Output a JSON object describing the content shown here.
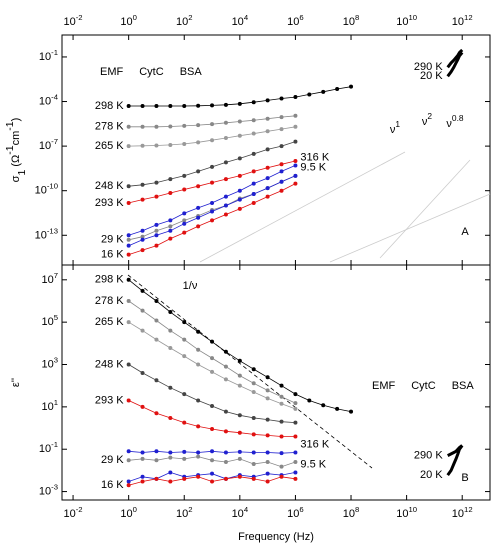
{
  "chart_data": [
    {
      "type": "line",
      "ylabel": "σ_1 (Ω^-1cm^-1)",
      "log_x": true,
      "log_y": true,
      "x_tick_side": "top",
      "xlim": [
        0.004,
        10000000000000.0
      ],
      "xticks": [
        {
          "value": 0.01,
          "label": "10^-2"
        },
        {
          "value": 1,
          "label": "10^0"
        },
        {
          "value": 100,
          "label": "10^2"
        },
        {
          "value": 10000,
          "label": "10^4"
        },
        {
          "value": 1000000,
          "label": "10^6"
        },
        {
          "value": 100000000,
          "label": "10^8"
        },
        {
          "value": 10000000000,
          "label": "10^10"
        },
        {
          "value": 1000000000000,
          "label": "10^12"
        }
      ],
      "ylim": [
        1e-15,
        3
      ],
      "yticks": [
        {
          "value": 1e-13,
          "label": "10^-13"
        },
        {
          "value": 1e-10,
          "label": "10^-10"
        },
        {
          "value": 1e-07,
          "label": "10^-7"
        },
        {
          "value": 0.0001,
          "label": "10^-4"
        },
        {
          "value": 0.1,
          "label": "10^-1"
        }
      ],
      "legend": {
        "position": "upper left",
        "entries": [
          {
            "label": "EMF",
            "color": "#000000"
          },
          {
            "label": "CytC",
            "color": "#e01010"
          },
          {
            "label": "BSA",
            "color": "#2020d0"
          }
        ]
      },
      "annotations": [
        "ν^1",
        "ν^2",
        "ν^0.8",
        "A"
      ],
      "series": [
        {
          "name": "298 K",
          "color": "#000000",
          "x": [
            1,
            3.16,
            10,
            31.6,
            100,
            316,
            1000,
            3160,
            10000,
            31600,
            100000,
            316000,
            1000000,
            3160000,
            10000000,
            31600000,
            100000000
          ],
          "values": [
            5e-05,
            5e-05,
            5e-05,
            5e-05,
            5e-05,
            5.2e-05,
            5.5e-05,
            6e-05,
            7e-05,
            9e-05,
            0.00012,
            0.00016,
            0.0002,
            0.0003,
            0.00045,
            0.0007,
            0.001
          ]
        },
        {
          "name": "278 K",
          "color": "#888888",
          "x": [
            1,
            3.16,
            10,
            31.6,
            100,
            316,
            1000,
            3160,
            10000,
            31600,
            100000,
            316000,
            1000000
          ],
          "values": [
            2e-06,
            2e-06,
            2e-06,
            2.1e-06,
            2.3e-06,
            2.6e-06,
            3e-06,
            3.7e-06,
            4.5e-06,
            5.5e-06,
            7e-06,
            9e-06,
            1.1e-05
          ]
        },
        {
          "name": "265 K",
          "color": "#999999",
          "x": [
            1,
            3.16,
            10,
            31.6,
            100,
            316,
            1000,
            3160,
            10000,
            31600,
            100000,
            316000,
            1000000
          ],
          "values": [
            1e-07,
            1.05e-07,
            1.1e-07,
            1.2e-07,
            1.4e-07,
            1.8e-07,
            2.5e-07,
            3.5e-07,
            5e-07,
            7e-07,
            1e-06,
            1.4e-06,
            2e-06
          ]
        },
        {
          "name": "248 K",
          "color": "#444444",
          "x": [
            1,
            3.16,
            10,
            31.6,
            100,
            316,
            1000,
            3160,
            10000,
            31600,
            100000,
            316000,
            1000000
          ],
          "values": [
            2e-10,
            2.5e-10,
            3.5e-10,
            6e-10,
            1e-09,
            2e-09,
            4e-09,
            8e-09,
            1.5e-08,
            3e-08,
            6e-08,
            1e-07,
            2e-07
          ]
        },
        {
          "name": "293 K",
          "color": "#e01010",
          "x": [
            1,
            3.16,
            10,
            31.6,
            100,
            316,
            1000,
            3160,
            10000,
            31600,
            100000,
            316000,
            1000000
          ],
          "values": [
            1.5e-11,
            2.5e-11,
            4e-11,
            7e-11,
            1.2e-10,
            2e-10,
            3.5e-10,
            6e-10,
            1e-09,
            2e-09,
            3.5e-09,
            6e-09,
            1e-08
          ]
        },
        {
          "name": "316 K",
          "color": "#2020d0",
          "label_at": "end",
          "x": [
            1,
            3.16,
            10,
            31.6,
            100,
            316,
            1000,
            3160,
            10000,
            31600,
            100000,
            316000,
            1000000
          ],
          "values": [
            1e-13,
            2e-13,
            5e-13,
            1e-12,
            3e-12,
            7e-12,
            1.5e-11,
            4e-11,
            1e-10,
            3e-10,
            7e-10,
            2e-09,
            5e-09
          ]
        },
        {
          "name": "29 K",
          "color": "#888888",
          "x": [
            1,
            3.16,
            10,
            31.6,
            100,
            316,
            1000,
            3160,
            10000,
            31600,
            100000,
            316000,
            1000000
          ],
          "values": [
            5e-14,
            8e-14,
            2e-13,
            4e-13,
            1e-12,
            2e-12,
            5e-12,
            1e-11,
            3e-11,
            6e-11,
            1.5e-10,
            4e-10,
            1e-09
          ]
        },
        {
          "name": "9.5 K",
          "color": "#2020d0",
          "label_at": "end",
          "x": [
            1,
            3.16,
            10,
            31.6,
            100,
            316,
            1000,
            3160,
            10000,
            31600,
            100000,
            316000,
            1000000
          ],
          "values": [
            2e-14,
            5e-14,
            1e-13,
            2e-13,
            6e-13,
            1.5e-12,
            4e-12,
            1e-11,
            2.5e-11,
            6e-11,
            1.5e-10,
            4e-10,
            1e-09
          ]
        },
        {
          "name": "16 K",
          "color": "#e01010",
          "x": [
            1,
            3.16,
            10,
            31.6,
            100,
            316,
            1000,
            3160,
            10000,
            31600,
            100000,
            316000,
            1000000
          ],
          "values": [
            5e-15,
            1e-14,
            2e-14,
            6e-14,
            1.5e-13,
            4e-13,
            1e-12,
            2.5e-12,
            6e-12,
            1.5e-11,
            4e-11,
            1e-10,
            3e-10
          ]
        },
        {
          "name": "290 K",
          "color": "#000000",
          "marker": "none",
          "x": [
            300000000000,
            400000000000,
            500000000000,
            600000000000,
            700000000000,
            800000000000,
            1000000000000
          ],
          "values": [
            0.02,
            0.04,
            0.06,
            0.09,
            0.13,
            0.2,
            0.3
          ]
        },
        {
          "name": "20 K",
          "color": "#000000",
          "marker": "none",
          "x": [
            300000000000,
            400000000000,
            500000000000,
            600000000000,
            700000000000,
            800000000000,
            1000000000000
          ],
          "values": [
            0.005,
            0.01,
            0.02,
            0.04,
            0.07,
            0.12,
            0.2
          ]
        }
      ]
    },
    {
      "type": "line",
      "ylabel": "ε''",
      "xlabel": "Frequency (Hz)",
      "log_x": true,
      "log_y": true,
      "x_tick_side": "bottom",
      "xlim": [
        0.004,
        10000000000000.0
      ],
      "xticks": [
        {
          "value": 0.01,
          "label": "10^-2"
        },
        {
          "value": 1,
          "label": "10^0"
        },
        {
          "value": 100,
          "label": "10^2"
        },
        {
          "value": 10000,
          "label": "10^4"
        },
        {
          "value": 1000000,
          "label": "10^6"
        },
        {
          "value": 100000000,
          "label": "10^8"
        },
        {
          "value": 10000000000,
          "label": "10^10"
        },
        {
          "value": 1000000000000,
          "label": "10^12"
        }
      ],
      "ylim": [
        0.0004,
        50000000
      ],
      "yticks": [
        {
          "value": 0.001,
          "label": "10^-3"
        },
        {
          "value": 0.1,
          "label": "10^-1"
        },
        {
          "value": 10,
          "label": "10^1"
        },
        {
          "value": 1000,
          "label": "10^3"
        },
        {
          "value": 100000,
          "label": "10^5"
        },
        {
          "value": 10000000,
          "label": "10^7"
        }
      ],
      "legend": {
        "position": "center right",
        "entries": [
          {
            "label": "EMF",
            "color": "#000000"
          },
          {
            "label": "CytC",
            "color": "#e01010"
          },
          {
            "label": "BSA",
            "color": "#2020d0"
          }
        ]
      },
      "annotations": [
        "1/ν",
        "B"
      ],
      "series": [
        {
          "name": "298 K",
          "color": "#000000",
          "x": [
            1,
            3.16,
            10,
            31.6,
            100,
            316,
            1000,
            3160,
            10000,
            31600,
            100000,
            316000,
            1000000,
            3160000,
            10000000,
            31600000,
            100000000
          ],
          "values": [
            10000000,
            3000000,
            1000000,
            300000,
            100000,
            35000,
            12000,
            4000,
            1500,
            600,
            250,
            100,
            40,
            20,
            12,
            8,
            6
          ]
        },
        {
          "name": "278 K",
          "color": "#888888",
          "x": [
            1,
            3.16,
            10,
            31.6,
            100,
            316,
            1000,
            3160,
            10000,
            31600,
            100000,
            316000,
            1000000
          ],
          "values": [
            1000000,
            350000,
            120000,
            40000,
            15000,
            5000,
            2000,
            800,
            300,
            130,
            60,
            30,
            15
          ]
        },
        {
          "name": "265 K",
          "color": "#999999",
          "x": [
            1,
            3.16,
            10,
            31.6,
            100,
            316,
            1000,
            3160,
            10000,
            31600,
            100000,
            316000,
            1000000
          ],
          "values": [
            100000,
            40000,
            15000,
            6000,
            2500,
            1000,
            450,
            200,
            100,
            50,
            25,
            14,
            8
          ]
        },
        {
          "name": "248 K",
          "color": "#444444",
          "x": [
            1,
            3.16,
            10,
            31.6,
            100,
            316,
            1000,
            3160,
            10000,
            31600,
            100000,
            316000,
            1000000
          ],
          "values": [
            1000,
            400,
            180,
            80,
            40,
            20,
            11,
            6,
            4,
            3,
            2.5,
            2,
            1.8
          ]
        },
        {
          "name": "293 K",
          "color": "#e01010",
          "x": [
            1,
            3.16,
            10,
            31.6,
            100,
            316,
            1000,
            3160,
            10000,
            31600,
            100000,
            316000,
            1000000
          ],
          "values": [
            20,
            10,
            5,
            3,
            1.8,
            1.2,
            0.9,
            0.7,
            0.6,
            0.5,
            0.45,
            0.4,
            0.4
          ]
        },
        {
          "name": "29 K",
          "color": "#888888",
          "x": [
            1,
            3.16,
            10,
            31.6,
            100,
            316,
            1000,
            3160,
            10000,
            31600,
            100000,
            316000,
            1000000
          ],
          "values": [
            0.03,
            0.035,
            0.03,
            0.04,
            0.035,
            0.045,
            0.03,
            0.025,
            0.035,
            0.02,
            0.025,
            0.015,
            0.025
          ]
        },
        {
          "name": "316 K",
          "color": "#2020d0",
          "label_at": "end",
          "x": [
            1,
            3.16,
            10,
            31.6,
            100,
            316,
            1000,
            3160,
            10000,
            31600,
            100000,
            316000,
            1000000
          ],
          "values": [
            0.08,
            0.07,
            0.08,
            0.07,
            0.075,
            0.07,
            0.08,
            0.07,
            0.075,
            0.07,
            0.07,
            0.065,
            0.07
          ]
        },
        {
          "name": "9.5 K",
          "color": "#2020d0",
          "label_at": "end",
          "x": [
            1,
            3.16,
            10,
            31.6,
            100,
            316,
            1000,
            3160,
            10000,
            31600,
            100000,
            316000,
            1000000
          ],
          "values": [
            0.003,
            0.005,
            0.004,
            0.008,
            0.005,
            0.006,
            0.007,
            0.004,
            0.006,
            0.005,
            0.007,
            0.006,
            0.008
          ]
        },
        {
          "name": "16 K",
          "color": "#e01010",
          "x": [
            1,
            3.16,
            10,
            31.6,
            100,
            316,
            1000,
            3160,
            10000,
            31600,
            100000,
            316000,
            1000000
          ],
          "values": [
            0.002,
            0.003,
            0.004,
            0.003,
            0.004,
            0.005,
            0.003,
            0.004,
            0.005,
            0.004,
            0.003,
            0.005,
            0.004
          ]
        },
        {
          "name": "290 K",
          "color": "#000000",
          "marker": "none",
          "x": [
            300000000000,
            400000000000,
            500000000000,
            600000000000,
            700000000000,
            800000000000,
            1000000000000
          ],
          "values": [
            0.05,
            0.06,
            0.07,
            0.08,
            0.1,
            0.12,
            0.15
          ]
        },
        {
          "name": "20 K",
          "color": "#000000",
          "marker": "none",
          "x": [
            300000000000,
            400000000000,
            500000000000,
            600000000000,
            700000000000,
            800000000000,
            1000000000000
          ],
          "values": [
            0.006,
            0.01,
            0.02,
            0.035,
            0.06,
            0.1,
            0.15
          ]
        }
      ]
    }
  ]
}
